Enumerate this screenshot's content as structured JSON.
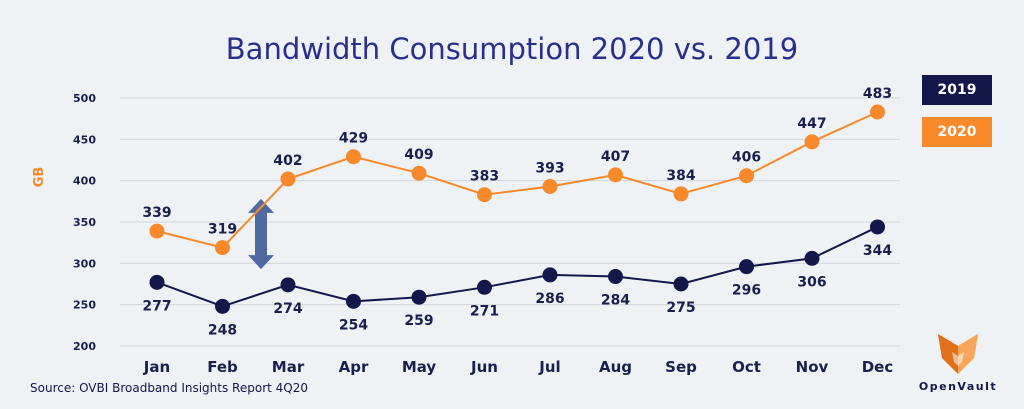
{
  "chart_data": {
    "type": "line",
    "title": "Bandwidth Consumption 2020 vs. 2019",
    "ylabel": "GB",
    "xlabel": "",
    "ylim": [
      200,
      500
    ],
    "yticks": [
      "200",
      "250",
      "300",
      "350",
      "400",
      "450",
      "500"
    ],
    "grid": true,
    "legend_position": "top-right",
    "categories": [
      "Jan",
      "Feb",
      "Mar",
      "Apr",
      "May",
      "Jun",
      "Jul",
      "Aug",
      "Sep",
      "Oct",
      "Nov",
      "Dec"
    ],
    "series": [
      {
        "name": "2019",
        "color": "#14174a",
        "values": [
          277,
          248,
          274,
          254,
          259,
          271,
          286,
          284,
          275,
          296,
          306,
          344
        ],
        "labels": [
          "277",
          "248",
          "274",
          "254",
          "259",
          "271",
          "286",
          "284",
          "275",
          "296",
          "306",
          "344"
        ]
      },
      {
        "name": "2020",
        "color": "#f7892a",
        "values": [
          339,
          319,
          402,
          429,
          409,
          383,
          393,
          407,
          384,
          406,
          447,
          483
        ],
        "labels": [
          "339",
          "319",
          "402",
          "429",
          "409",
          "383",
          "393",
          "407",
          "384",
          "406",
          "447",
          "483"
        ]
      }
    ],
    "annotation": {
      "type": "double-arrow",
      "category": "Mar",
      "from": 293,
      "to": 378,
      "color": "#4f6aa3"
    }
  },
  "source": "Source: OVBI Broadband Insights Report 4Q20",
  "logo": {
    "text": "OpenVault",
    "icon": "openvault-logo-icon",
    "color": "#f7892a"
  },
  "colors": {
    "background": "#eef2f5",
    "grid": "#d3d6da",
    "text": "#1a1f4e",
    "title": "#2a2e8c"
  }
}
